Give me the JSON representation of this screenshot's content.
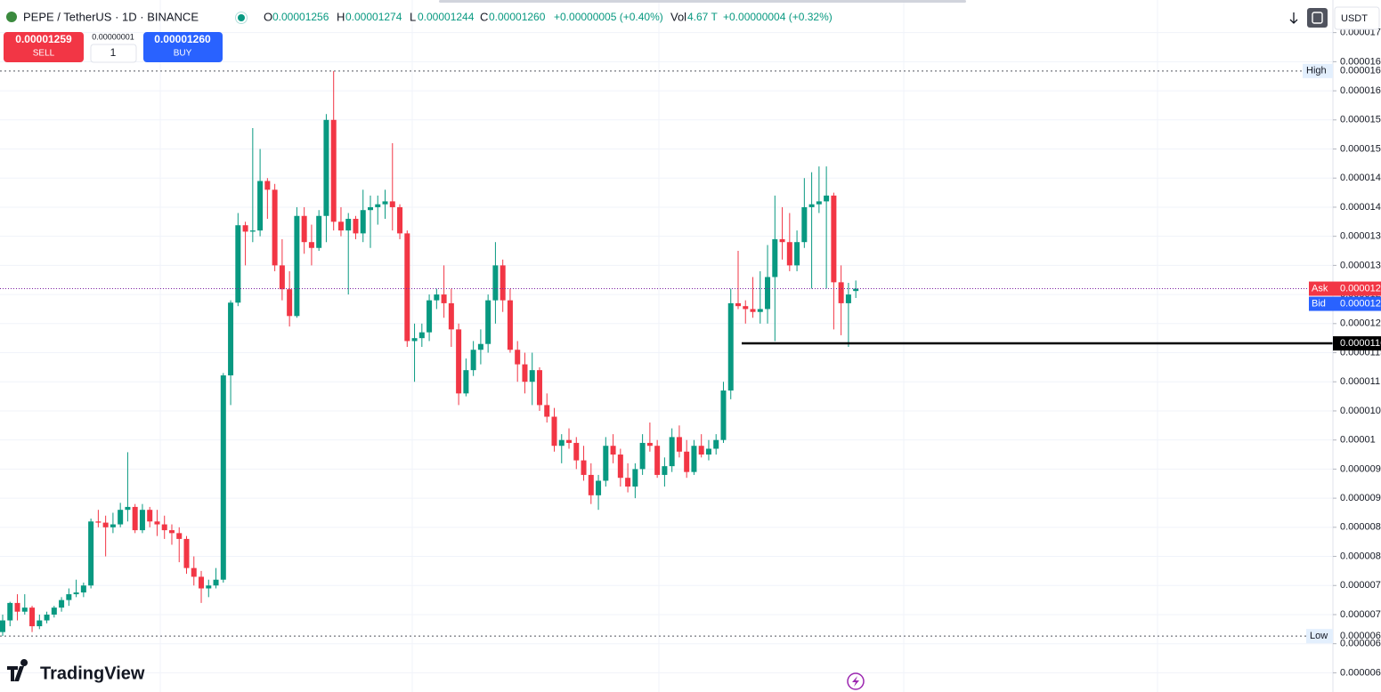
{
  "header": {
    "symbol": "PEPE / TetherUS · 1D · BINANCE",
    "o_label": "O",
    "o": "0.00001256",
    "h_label": "H",
    "h": "0.00001274",
    "l_label": "L",
    "l": "0.00001244",
    "c_label": "C",
    "c": "0.00001260",
    "change": "+0.00000005 (+0.40%)",
    "vol_label": "Vol",
    "vol": "4.67 T",
    "vol_change": "+0.00000004 (+0.32%)"
  },
  "trade": {
    "sell_price": "0.00001259",
    "sell": "SELL",
    "spread": "0.00000001",
    "qty": "1",
    "buy_price": "0.00001260",
    "buy": "BUY"
  },
  "currency": "USDT",
  "watermark": "TradingView",
  "chart_data": {
    "type": "candlestick",
    "up_color": "#089981",
    "down_color": "#f23645",
    "open": [
      6.7e-06,
      6.9e-06,
      7.2e-06,
      7.05e-06,
      7.12e-06,
      6.8e-06,
      6.9e-06,
      7e-06,
      7.12e-06,
      7.25e-06,
      7.35e-06,
      7.38e-06,
      7.5e-06,
      8.6e-06,
      8.58e-06,
      8.5e-06,
      8.55e-06,
      8.8e-06,
      8.85e-06,
      8.45e-06,
      8.8e-06,
      8.6e-06,
      8.55e-06,
      8.45e-06,
      8.4e-06,
      8.3e-06,
      7.8e-06,
      7.65e-06,
      7.45e-06,
      7.5e-06,
      7.6e-06,
      1.111e-05,
      1.236e-05,
      1.369e-05,
      1.358e-05,
      1.36e-05,
      1.445e-05,
      1.43e-05,
      1.3e-05,
      1.259e-05,
      1.213e-05,
      1.385e-05,
      1.34e-05,
      1.33e-05,
      1.385e-05,
      1.55e-05,
      1.375e-05,
      1.36e-05,
      1.38e-05,
      1.355e-05,
      1.395e-05,
      1.4e-05,
      1.405e-05,
      1.41e-05,
      1.4e-05,
      1.355e-05,
      1.17e-05,
      1.175e-05,
      1.185e-05,
      1.24e-05,
      1.25e-05,
      1.235e-05,
      1.19e-05,
      1.08e-05,
      1.12e-05,
      1.155e-05,
      1.165e-05,
      1.24e-05,
      1.3e-05,
      1.24e-05,
      1.155e-05,
      1.13e-05,
      1.1e-05,
      1.12e-05,
      1.06e-05,
      1.04e-05,
      9.9e-06,
      1e-05,
      9.95e-06,
      9.65e-06,
      9.4e-06,
      9.05e-06,
      9.3e-06,
      9.9e-06,
      9.75e-06,
      9.35e-06,
      9.2e-06,
      9.5e-06,
      9.95e-06,
      9.9e-06,
      9.4e-06,
      9.55e-06,
      1.005e-05,
      9.8e-06,
      9.45e-06,
      9.9e-06,
      9.75e-06,
      9.85e-06,
      1e-05,
      1.085e-05,
      1.235e-05,
      1.23e-05,
      1.225e-05,
      1.22e-05,
      1.225e-05,
      1.28e-05,
      1.345e-05,
      1.34e-05,
      1.3e-05,
      1.34e-05,
      1.4e-05,
      1.405e-05,
      1.41e-05,
      1.42e-05,
      1.271e-05,
      1.235e-05,
      1.256e-05
    ],
    "high": [
      7e-06,
      7.22e-06,
      7.35e-06,
      7.35e-06,
      7.15e-06,
      7e-06,
      7.05e-06,
      7.15e-06,
      7.3e-06,
      7.45e-06,
      7.6e-06,
      7.55e-06,
      8.65e-06,
      8.8e-06,
      8.7e-06,
      8.75e-06,
      8.92e-06,
      9.79e-06,
      8.9e-06,
      8.9e-06,
      8.85e-06,
      8.8e-06,
      8.7e-06,
      8.55e-06,
      8.5e-06,
      8.35e-06,
      8e-06,
      7.75e-06,
      7.6e-06,
      7.8e-06,
      1.115e-05,
      1.24e-05,
      1.39e-05,
      1.375e-05,
      1.536e-05,
      1.5e-05,
      1.45e-05,
      1.44e-05,
      1.345e-05,
      1.29e-05,
      1.4e-05,
      1.4e-05,
      1.37e-05,
      1.395e-05,
      1.56e-05,
      1.634e-05,
      1.4e-05,
      1.39e-05,
      1.385e-05,
      1.43e-05,
      1.42e-05,
      1.42e-05,
      1.43e-05,
      1.51e-05,
      1.405e-05,
      1.36e-05,
      1.2e-05,
      1.2e-05,
      1.25e-05,
      1.26e-05,
      1.3e-05,
      1.26e-05,
      1.2e-05,
      1.14e-05,
      1.17e-05,
      1.19e-05,
      1.25e-05,
      1.34e-05,
      1.31e-05,
      1.26e-05,
      1.17e-05,
      1.15e-05,
      1.15e-05,
      1.125e-05,
      1.08e-05,
      1.055e-05,
      1.01e-05,
      1.02e-05,
      1.005e-05,
      9.9e-06,
      9.6e-06,
      9.4e-06,
      1.005e-05,
      1.01e-05,
      9.85e-06,
      9.6e-06,
      9.6e-06,
      1.01e-05,
      1.03e-05,
      1e-05,
      9.7e-06,
      1.02e-05,
      1.025e-05,
      1e-05,
      1e-05,
      1.01e-05,
      1e-05,
      1.01e-05,
      1.1e-05,
      1.26e-05,
      1.325e-05,
      1.24e-05,
      1.28e-05,
      1.29e-05,
      1.335e-05,
      1.42e-05,
      1.4e-05,
      1.39e-05,
      1.36e-05,
      1.45e-05,
      1.46e-05,
      1.47e-05,
      1.47e-05,
      1.425e-05,
      1.3e-05,
      1.27e-05,
      1.274e-05
    ],
    "low": [
      6.63e-06,
      6.8e-06,
      6.9e-06,
      7e-06,
      6.7e-06,
      6.75e-06,
      6.85e-06,
      6.95e-06,
      7.05e-06,
      7.15e-06,
      7.3e-06,
      7.3e-06,
      7.45e-06,
      8.5e-06,
      8e-06,
      8.4e-06,
      8.5e-06,
      8.6e-06,
      8.4e-06,
      8.4e-06,
      8.5e-06,
      8.35e-06,
      8.3e-06,
      8.2e-06,
      7.9e-06,
      7.7e-06,
      7.5e-06,
      7.2e-06,
      7.3e-06,
      7.45e-06,
      7.55e-06,
      1.06e-05,
      1.23e-05,
      1.3e-05,
      1.34e-05,
      1.35e-05,
      1.38e-05,
      1.29e-05,
      1.24e-05,
      1.195e-05,
      1.21e-05,
      1.32e-05,
      1.3e-05,
      1.325e-05,
      1.34e-05,
      1.36e-05,
      1.35e-05,
      1.25e-05,
      1.345e-05,
      1.34e-05,
      1.33e-05,
      1.37e-05,
      1.38e-05,
      1.36e-05,
      1.345e-05,
      1.16e-05,
      1.1e-05,
      1.16e-05,
      1.17e-05,
      1.225e-05,
      1.21e-05,
      1.16e-05,
      1.06e-05,
      1.075e-05,
      1.11e-05,
      1.13e-05,
      1.15e-05,
      1.2e-05,
      1.22e-05,
      1.15e-05,
      1.1e-05,
      1.08e-05,
      1.06e-05,
      1.05e-05,
      1.03e-05,
      9.8e-06,
      9.6e-06,
      9.85e-06,
      9.5e-06,
      9.3e-06,
      8.9e-06,
      8.8e-06,
      9.2e-06,
      9.6e-06,
      9.2e-06,
      9.1e-06,
      9e-06,
      9.4e-06,
      9.8e-06,
      9.35e-06,
      9.2e-06,
      9.45e-06,
      9.7e-06,
      9.35e-06,
      9.4e-06,
      9.7e-06,
      9.65e-06,
      9.75e-06,
      9.95e-06,
      1.07e-05,
      1.225e-05,
      1.2e-05,
      1.21e-05,
      1.2e-05,
      1.2e-05,
      1.17e-05,
      1.31e-05,
      1.29e-05,
      1.29e-05,
      1.33e-05,
      1.26e-05,
      1.39e-05,
      1.26e-05,
      1.19e-05,
      1.18e-05,
      1.16e-05,
      1.244e-05
    ],
    "close": [
      6.9e-06,
      7.2e-06,
      7.05e-06,
      7.12e-06,
      6.8e-06,
      6.9e-06,
      7e-06,
      7.12e-06,
      7.25e-06,
      7.35e-06,
      7.38e-06,
      7.5e-06,
      8.6e-06,
      8.58e-06,
      8.5e-06,
      8.55e-06,
      8.8e-06,
      8.85e-06,
      8.45e-06,
      8.8e-06,
      8.6e-06,
      8.55e-06,
      8.45e-06,
      8.4e-06,
      8.3e-06,
      7.8e-06,
      7.65e-06,
      7.45e-06,
      7.5e-06,
      7.6e-06,
      1.111e-05,
      1.236e-05,
      1.369e-05,
      1.358e-05,
      1.36e-05,
      1.445e-05,
      1.43e-05,
      1.3e-05,
      1.259e-05,
      1.213e-05,
      1.385e-05,
      1.34e-05,
      1.33e-05,
      1.385e-05,
      1.55e-05,
      1.375e-05,
      1.36e-05,
      1.38e-05,
      1.355e-05,
      1.395e-05,
      1.4e-05,
      1.405e-05,
      1.41e-05,
      1.4e-05,
      1.355e-05,
      1.17e-05,
      1.175e-05,
      1.185e-05,
      1.24e-05,
      1.25e-05,
      1.235e-05,
      1.19e-05,
      1.08e-05,
      1.12e-05,
      1.155e-05,
      1.165e-05,
      1.24e-05,
      1.3e-05,
      1.24e-05,
      1.155e-05,
      1.13e-05,
      1.1e-05,
      1.12e-05,
      1.06e-05,
      1.04e-05,
      9.9e-06,
      1e-05,
      9.95e-06,
      9.65e-06,
      9.4e-06,
      9.05e-06,
      9.3e-06,
      9.9e-06,
      9.75e-06,
      9.35e-06,
      9.2e-06,
      9.5e-06,
      9.95e-06,
      9.9e-06,
      9.4e-06,
      9.55e-06,
      1.005e-05,
      9.8e-06,
      9.45e-06,
      9.9e-06,
      9.75e-06,
      9.85e-06,
      1e-05,
      1.085e-05,
      1.235e-05,
      1.23e-05,
      1.225e-05,
      1.22e-05,
      1.225e-05,
      1.28e-05,
      1.345e-05,
      1.34e-05,
      1.3e-05,
      1.34e-05,
      1.4e-05,
      1.405e-05,
      1.41e-05,
      1.42e-05,
      1.271e-05,
      1.235e-05,
      1.25e-05,
      1.26e-05
    ],
    "ylim": [
      5.67e-06,
      1.756e-05
    ],
    "yticks": [
      6e-06,
      6.5e-06,
      7e-06,
      7.5e-06,
      8e-06,
      8.5e-06,
      9e-06,
      9.5e-06,
      1e-05,
      1.05e-05,
      1.1e-05,
      1.15e-05,
      1.2e-05,
      1.25e-05,
      1.3e-05,
      1.35e-05,
      1.4e-05,
      1.45e-05,
      1.5e-05,
      1.55e-05,
      1.6e-05,
      1.65e-05,
      1.7e-05
    ],
    "grid": true,
    "high_line": {
      "label": "High",
      "value": 1.634e-05
    },
    "low_line": {
      "label": "Low",
      "value": 6.63e-06
    },
    "ask": {
      "label": "Ask",
      "value": 1.26e-05
    },
    "bid": {
      "label": "Bid",
      "value": 1.259e-05
    },
    "horizontal_line": 1.166e-05
  }
}
